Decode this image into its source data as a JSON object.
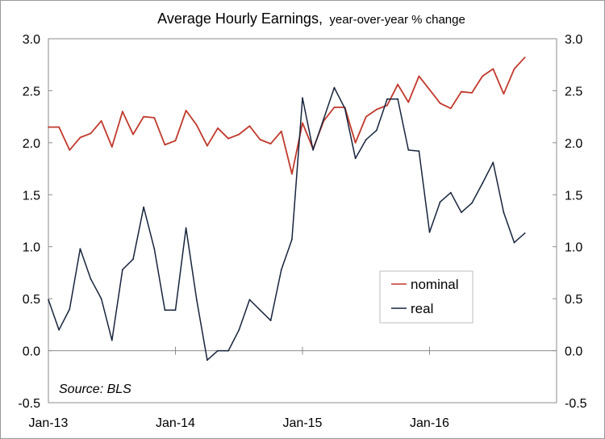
{
  "chart_data": {
    "type": "line",
    "title": "Average Hourly Earnings,",
    "subtitle": "year-over-year % change",
    "source_note": "Source: BLS",
    "x_tick_labels": [
      "Jan-13",
      "Jan-14",
      "Jan-15",
      "Jan-16"
    ],
    "x_tick_months": [
      0,
      12,
      24,
      36
    ],
    "x_range_months": [
      0,
      48
    ],
    "ylim": [
      -0.5,
      3.0
    ],
    "y_ticks": [
      "-0.5",
      "0.0",
      "0.5",
      "1.0",
      "1.5",
      "2.0",
      "2.5",
      "3.0"
    ],
    "y_tick_values": [
      -0.5,
      0.0,
      0.5,
      1.0,
      1.5,
      2.0,
      2.5,
      3.0
    ],
    "legend_position": "center-right",
    "series": [
      {
        "name": "nominal",
        "color": "#c0392b",
        "values": [
          2.15,
          2.15,
          1.93,
          2.05,
          2.09,
          2.21,
          1.96,
          2.3,
          2.08,
          2.25,
          2.24,
          1.98,
          2.02,
          2.31,
          2.17,
          1.97,
          2.14,
          2.04,
          2.08,
          2.16,
          2.03,
          1.99,
          2.11,
          1.7,
          2.19,
          1.94,
          2.21,
          2.34,
          2.34,
          2.0,
          2.25,
          2.32,
          2.36,
          2.56,
          2.39,
          2.64,
          2.51,
          2.38,
          2.33,
          2.49,
          2.48,
          2.64,
          2.71,
          2.47,
          2.71,
          2.82
        ]
      },
      {
        "name": "real",
        "color": "#17243d",
        "values": [
          0.49,
          0.2,
          0.4,
          0.98,
          0.69,
          0.5,
          0.1,
          0.78,
          0.88,
          1.38,
          0.98,
          0.39,
          0.39,
          1.18,
          0.49,
          -0.09,
          0.0,
          0.0,
          0.2,
          0.49,
          0.39,
          0.29,
          0.78,
          1.07,
          2.43,
          1.93,
          2.23,
          2.53,
          2.33,
          1.85,
          2.03,
          2.12,
          2.42,
          2.42,
          1.93,
          1.92,
          1.14,
          1.43,
          1.52,
          1.33,
          1.42,
          1.61,
          1.81,
          1.33,
          1.04,
          1.13
        ]
      }
    ]
  }
}
